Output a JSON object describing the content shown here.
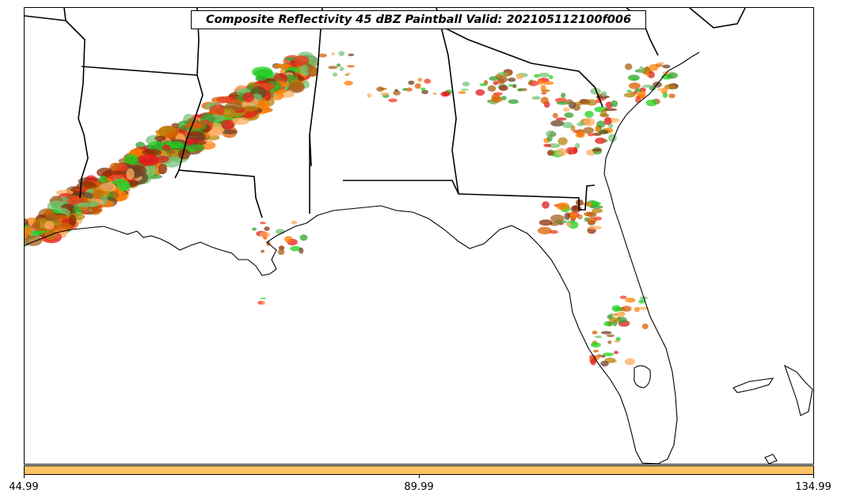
{
  "map": {
    "title": "Composite Reflectivity 45 dBZ Paintball Valid: 202105112100f006",
    "colorbar": {
      "color": "#ffc366",
      "ticks": [
        "44.99",
        "89.99",
        "134.99"
      ]
    },
    "member_colors": [
      "#e31a1c",
      "#ff7f00",
      "#fdae61",
      "#33a02c",
      "#74c476",
      "#8c2d04",
      "#b8860b",
      "#1dd11d",
      "#d95f02",
      "#6b4226",
      "#f03b20",
      "#a6611a"
    ],
    "state_boundaries": "black",
    "coastlines": "black"
  }
}
